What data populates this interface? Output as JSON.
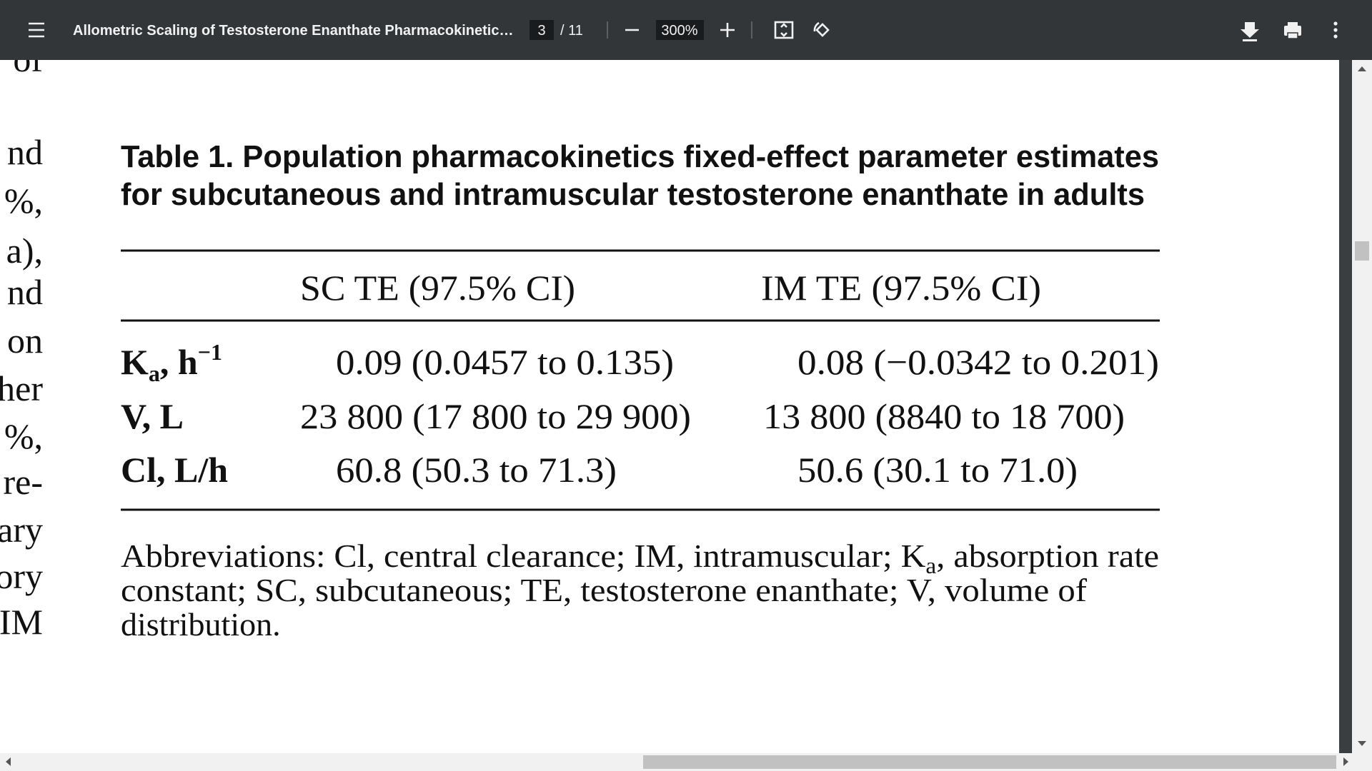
{
  "toolbar": {
    "title": "Allometric Scaling of Testosterone Enanthate Pharmacokinetic…",
    "page": "3",
    "page_count": "/ 11",
    "zoom": "300%"
  },
  "margin_text": [
    "of",
    "nd",
    "%,",
    "a),",
    "nd",
    "on",
    "her",
    "%,",
    "re-",
    "ary",
    "ory",
    "IM"
  ],
  "table": {
    "title": [
      "Table 1.  Population pharmacokinetics fixed-effect parameter estimates",
      "for subcutaneous and intramuscular testosterone enanthate in adults"
    ],
    "header": [
      "SC TE (97.5% CI)",
      "IM TE (97.5% CI)"
    ],
    "rows": [
      [
        [
          "K",
          "a",
          ", h",
          "−1"
        ],
        "0.09 (0.0457 to 0.135)",
        "0.08 (−0.0342 to 0.201)"
      ],
      [
        [
          "V, L"
        ],
        "23 800 (17 800 to 29 900)",
        "13 800 (8840 to 18 700)"
      ],
      [
        [
          "Cl, L/h"
        ],
        "60.8 (50.3 to 71.3)",
        "50.6 (30.1 to 71.0)"
      ]
    ],
    "footnote": [
      [
        "Abbreviations: Cl, central clearance; IM, intramuscular; K",
        "a",
        ", absorption rate"
      ],
      [
        "constant; SC, subcutaneous; TE, testosterone enanthate; V, volume of"
      ],
      [
        "distribution."
      ]
    ]
  }
}
